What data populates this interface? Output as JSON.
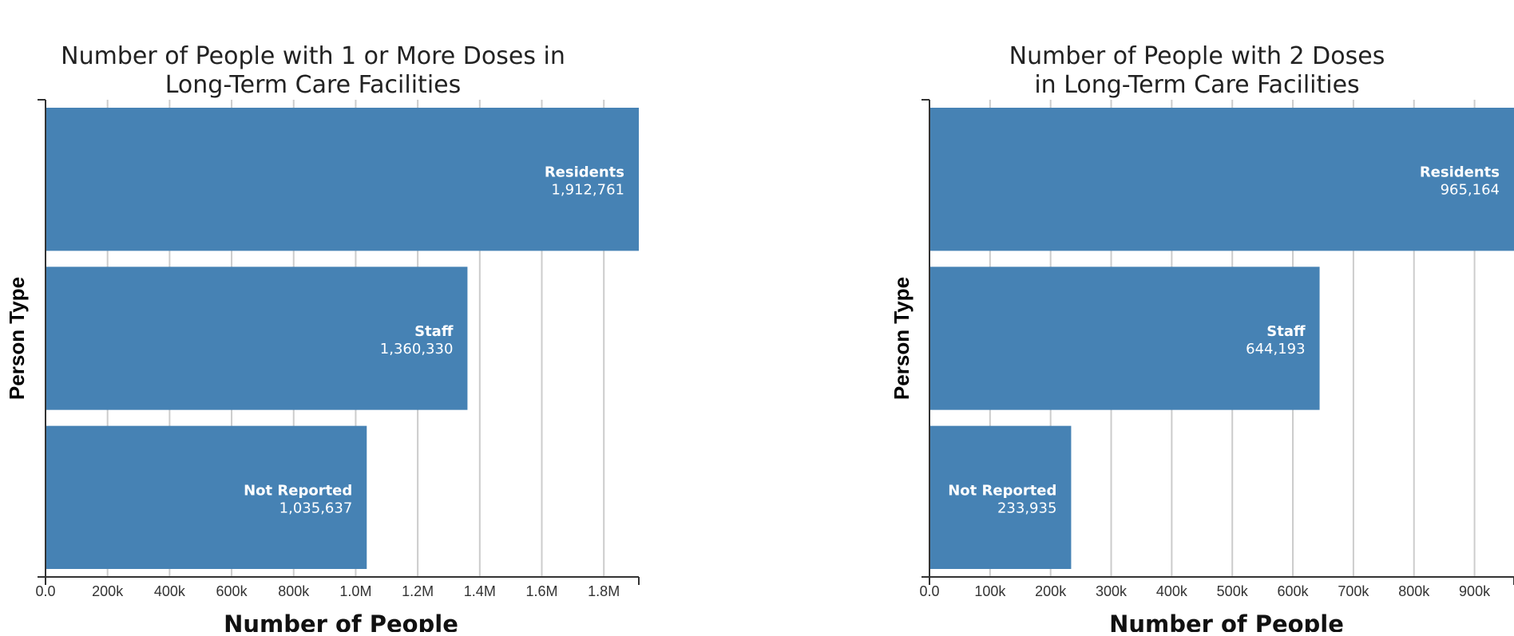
{
  "chart_data": [
    {
      "type": "bar",
      "orientation": "horizontal",
      "title": [
        "Number of People with 1 or More Doses in",
        "Long-Term Care Facilities"
      ],
      "xlabel": "Number of People",
      "ylabel": "Person Type",
      "categories": [
        "Residents",
        "Staff",
        "Not Reported"
      ],
      "values": [
        1912761,
        1360330,
        1035637
      ],
      "value_labels": [
        "1,912,761",
        "1,360,330",
        "1,035,637"
      ],
      "xlim": [
        0,
        1912761
      ],
      "xticks": [
        0,
        200000,
        400000,
        600000,
        800000,
        1000000,
        1200000,
        1400000,
        1600000,
        1800000
      ],
      "xtick_labels": [
        "0.0",
        "200k",
        "400k",
        "600k",
        "800k",
        "1.0M",
        "1.2M",
        "1.4M",
        "1.6M",
        "1.8M"
      ],
      "grid": true,
      "bar_color": "#4682b4"
    },
    {
      "type": "bar",
      "orientation": "horizontal",
      "title": [
        "Number of People with 2 Doses",
        "in Long-Term Care Facilities"
      ],
      "xlabel": "Number of People",
      "ylabel": "Person Type",
      "categories": [
        "Residents",
        "Staff",
        "Not Reported"
      ],
      "values": [
        965164,
        644193,
        233935
      ],
      "value_labels": [
        "965,164",
        "644,193",
        "233,935"
      ],
      "xlim": [
        0,
        965164
      ],
      "xticks": [
        0,
        100000,
        200000,
        300000,
        400000,
        500000,
        600000,
        700000,
        800000,
        900000
      ],
      "xtick_labels": [
        "0.0",
        "100k",
        "200k",
        "300k",
        "400k",
        "500k",
        "600k",
        "700k",
        "800k",
        "900k"
      ],
      "grid": true,
      "bar_color": "#4682b4"
    }
  ]
}
